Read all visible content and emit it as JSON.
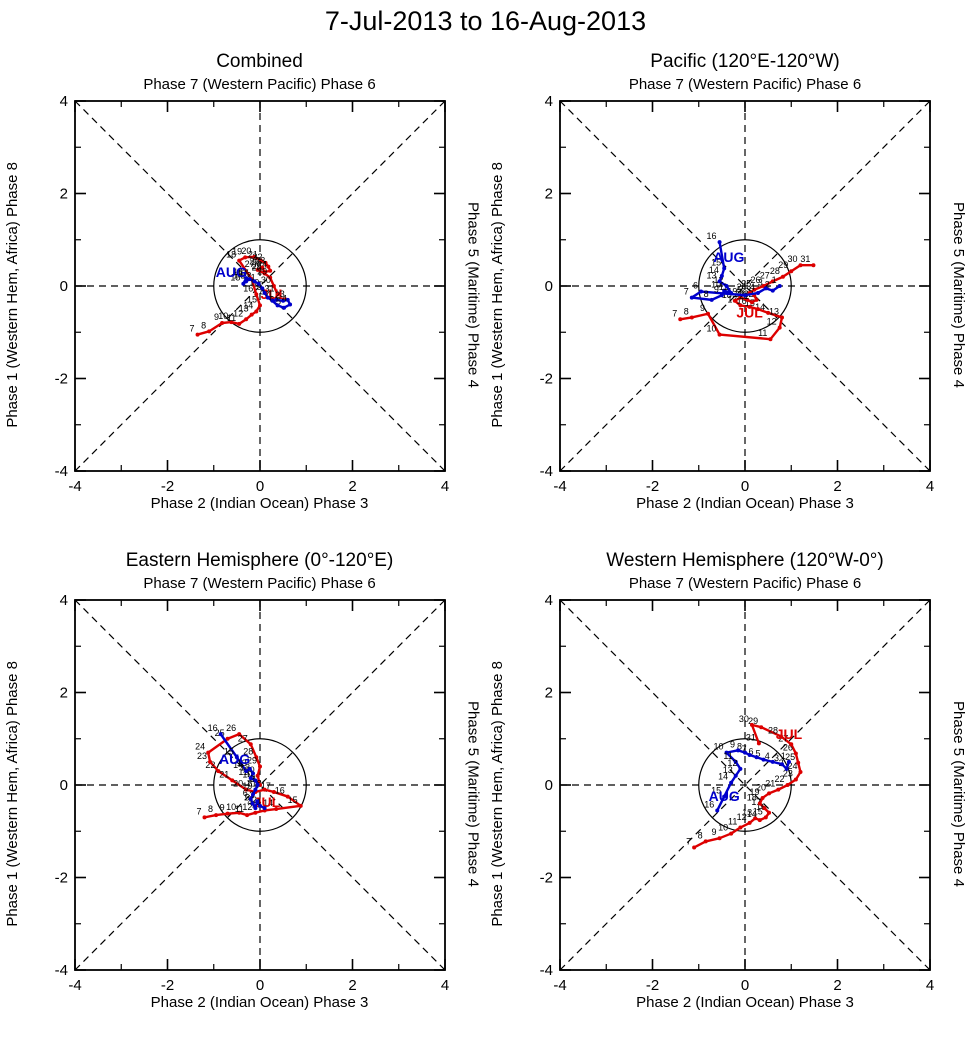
{
  "title": "7-Jul-2013 to 16-Aug-2013",
  "colors": {
    "jul": "#dd0000",
    "aug": "#0000cc",
    "axis": "#000000"
  },
  "axes": {
    "major_ticks": [
      -4,
      -2,
      0,
      2,
      4
    ],
    "minor_ticks": [
      -3,
      -1,
      1,
      3
    ],
    "xlim": [
      -4,
      4
    ],
    "ylim": [
      -4,
      4
    ],
    "unit_circle_radius": 1
  },
  "chart_data": [
    {
      "type": "line",
      "title": "Combined",
      "top_label": "Phase 7 (Western Pacific) Phase 6",
      "xlabel": "Phase 2 (Indian Ocean) Phase 3",
      "ylabel": "Phase 1 (Western Hem, Africa) Phase 8",
      "right_label": "Phase 5 (Maritime) Phase 4",
      "xlim": [
        -4,
        4
      ],
      "ylim": [
        -4,
        4
      ],
      "series": [
        {
          "name": "JUL",
          "color": "#dd0000",
          "label_pos": [
            0.3,
            -0.28
          ],
          "points": [
            [
              7,
              -1.35,
              -1.05
            ],
            [
              8,
              -1.1,
              -0.98
            ],
            [
              9,
              -0.82,
              -0.8
            ],
            [
              10,
              -0.62,
              -0.78
            ],
            [
              11,
              -0.45,
              -0.82
            ],
            [
              12,
              -0.3,
              -0.72
            ],
            [
              13,
              -0.18,
              -0.62
            ],
            [
              14,
              -0.08,
              -0.55
            ],
            [
              15,
              0.0,
              -0.42
            ],
            [
              16,
              -0.08,
              -0.18
            ],
            [
              17,
              -0.18,
              0.15
            ],
            [
              18,
              -0.45,
              0.55
            ],
            [
              19,
              -0.32,
              0.62
            ],
            [
              20,
              -0.12,
              0.63
            ],
            [
              21,
              0.02,
              0.55
            ],
            [
              22,
              0.12,
              0.5
            ],
            [
              23,
              0.18,
              0.42
            ],
            [
              24,
              0.22,
              0.33
            ],
            [
              25,
              0.1,
              0.3
            ],
            [
              26,
              0.05,
              0.4
            ],
            [
              27,
              -0.05,
              0.35
            ],
            [
              28,
              0.1,
              0.27
            ],
            [
              29,
              0.22,
              0.18
            ],
            [
              30,
              0.3,
              0.0
            ],
            [
              31,
              0.38,
              -0.18
            ]
          ]
        },
        {
          "name": "AUG",
          "color": "#0000cc",
          "label_pos": [
            -0.62,
            0.2
          ],
          "points": [
            [
              1,
              0.35,
              -0.3
            ],
            [
              2,
              0.5,
              -0.32
            ],
            [
              3,
              0.6,
              -0.3
            ],
            [
              4,
              0.65,
              -0.4
            ],
            [
              5,
              0.52,
              -0.47
            ],
            [
              6,
              0.38,
              -0.42
            ],
            [
              7,
              0.27,
              -0.32
            ],
            [
              8,
              0.17,
              -0.25
            ],
            [
              9,
              0.1,
              -0.15
            ],
            [
              10,
              0.05,
              -0.05
            ],
            [
              11,
              -0.03,
              0.05
            ],
            [
              12,
              -0.12,
              0.1
            ],
            [
              13,
              -0.22,
              0.15
            ],
            [
              14,
              -0.3,
              0.1
            ],
            [
              15,
              -0.36,
              0.05
            ],
            [
              16,
              -0.3,
              0.17
            ]
          ]
        }
      ]
    },
    {
      "type": "line",
      "title": "Pacific (120°E-120°W)",
      "top_label": "Phase 7 (Western Pacific) Phase 6",
      "xlabel": "Phase 2 (Indian Ocean) Phase 3",
      "ylabel": "Phase 1 (Western Hem, Africa) Phase 8",
      "right_label": "Phase 5 (Maritime) Phase 4",
      "xlim": [
        -4,
        4
      ],
      "ylim": [
        -4,
        4
      ],
      "series": [
        {
          "name": "JUL",
          "color": "#dd0000",
          "label_pos": [
            0.1,
            -0.68
          ],
          "points": [
            [
              7,
              -1.4,
              -0.72
            ],
            [
              8,
              -1.15,
              -0.68
            ],
            [
              9,
              -0.8,
              -0.6
            ],
            [
              10,
              -0.55,
              -1.05
            ],
            [
              11,
              0.55,
              -1.15
            ],
            [
              12,
              0.75,
              -0.9
            ],
            [
              13,
              0.8,
              -0.68
            ],
            [
              14,
              0.5,
              -0.58
            ],
            [
              15,
              0.28,
              -0.5
            ],
            [
              16,
              0.1,
              -0.45
            ],
            [
              17,
              -0.1,
              -0.42
            ],
            [
              18,
              -0.22,
              -0.32
            ],
            [
              19,
              -0.1,
              -0.25
            ],
            [
              20,
              0.05,
              -0.3
            ],
            [
              21,
              0.15,
              -0.35
            ],
            [
              22,
              0.25,
              -0.3
            ],
            [
              23,
              0.2,
              -0.2
            ],
            [
              24,
              0.1,
              -0.15
            ],
            [
              25,
              0.2,
              -0.08
            ],
            [
              26,
              0.4,
              0.0
            ],
            [
              27,
              0.6,
              0.1
            ],
            [
              28,
              0.82,
              0.2
            ],
            [
              29,
              1.0,
              0.32
            ],
            [
              30,
              1.2,
              0.45
            ],
            [
              31,
              1.48,
              0.45
            ]
          ]
        },
        {
          "name": "AUG",
          "color": "#0000cc",
          "label_pos": [
            -0.35,
            0.52
          ],
          "points": [
            [
              1,
              0.75,
              0.0
            ],
            [
              2,
              0.6,
              -0.1
            ],
            [
              3,
              0.45,
              -0.05
            ],
            [
              4,
              0.28,
              -0.15
            ],
            [
              5,
              0.0,
              -0.2
            ],
            [
              6,
              -0.95,
              -0.12
            ],
            [
              7,
              -1.15,
              -0.25
            ],
            [
              8,
              -0.72,
              -0.3
            ],
            [
              9,
              -0.5,
              -0.2
            ],
            [
              10,
              -0.45,
              -0.1
            ],
            [
              11,
              -0.3,
              -0.15
            ],
            [
              12,
              -0.4,
              0.0
            ],
            [
              13,
              -0.55,
              0.1
            ],
            [
              14,
              -0.5,
              0.22
            ],
            [
              15,
              -0.45,
              0.38
            ],
            [
              16,
              -0.55,
              0.95
            ]
          ]
        }
      ]
    },
    {
      "type": "line",
      "title": "Eastern Hemisphere (0°-120°E)",
      "top_label": "Phase 7 (Western Pacific) Phase 6",
      "xlabel": "Phase 2 (Indian Ocean) Phase 3",
      "ylabel": "Phase 1 (Western Hem, Africa) Phase 8",
      "right_label": "Phase 5 (Maritime) Phase 4",
      "xlim": [
        -4,
        4
      ],
      "ylim": [
        -4,
        4
      ],
      "series": [
        {
          "name": "JUL",
          "color": "#dd0000",
          "label_pos": [
            0.15,
            -0.48
          ],
          "points": [
            [
              7,
              -1.2,
              -0.7
            ],
            [
              8,
              -0.95,
              -0.65
            ],
            [
              9,
              -0.7,
              -0.62
            ],
            [
              10,
              -0.45,
              -0.6
            ],
            [
              11,
              -0.28,
              -0.65
            ],
            [
              12,
              -0.1,
              -0.6
            ],
            [
              13,
              0.1,
              -0.55
            ],
            [
              14,
              0.35,
              -0.52
            ],
            [
              15,
              0.88,
              -0.45
            ],
            [
              16,
              0.6,
              -0.25
            ],
            [
              17,
              0.3,
              -0.15
            ],
            [
              18,
              0.1,
              -0.1
            ],
            [
              19,
              -0.1,
              -0.15
            ],
            [
              20,
              -0.3,
              -0.1
            ],
            [
              21,
              -0.6,
              0.1
            ],
            [
              22,
              -0.9,
              0.3
            ],
            [
              23,
              -1.08,
              0.5
            ],
            [
              24,
              -1.12,
              0.7
            ],
            [
              25,
              -0.7,
              1.0
            ],
            [
              26,
              -0.45,
              1.1
            ],
            [
              27,
              -0.2,
              0.88
            ],
            [
              28,
              -0.08,
              0.6
            ],
            [
              29,
              0.0,
              0.4
            ],
            [
              30,
              -0.05,
              0.2
            ],
            [
              31,
              0.0,
              0.0
            ]
          ]
        },
        {
          "name": "AUG",
          "color": "#0000cc",
          "label_pos": [
            -0.55,
            0.45
          ],
          "points": [
            [
              1,
              0.1,
              -0.5
            ],
            [
              2,
              0.0,
              -0.45
            ],
            [
              3,
              -0.06,
              -0.35
            ],
            [
              4,
              -0.1,
              -0.5
            ],
            [
              5,
              -0.16,
              -0.4
            ],
            [
              6,
              -0.2,
              -0.3
            ],
            [
              7,
              -0.15,
              -0.2
            ],
            [
              8,
              -0.1,
              -0.1
            ],
            [
              9,
              -0.05,
              0.0
            ],
            [
              10,
              -0.1,
              0.1
            ],
            [
              11,
              -0.2,
              0.15
            ],
            [
              12,
              -0.15,
              0.25
            ],
            [
              13,
              -0.22,
              0.35
            ],
            [
              14,
              -0.3,
              0.3
            ],
            [
              15,
              -0.5,
              0.6
            ],
            [
              16,
              -0.85,
              1.1
            ]
          ]
        }
      ]
    },
    {
      "type": "line",
      "title": "Western Hemisphere (120°W-0°)",
      "top_label": "Phase 7 (Western Pacific) Phase 6",
      "xlabel": "Phase 2 (Indian Ocean) Phase 3",
      "ylabel": "Phase 1 (Western Hem, Africa) Phase 8",
      "right_label": "Phase 5 (Maritime) Phase 4",
      "xlim": [
        -4,
        4
      ],
      "ylim": [
        -4,
        4
      ],
      "series": [
        {
          "name": "JUL",
          "color": "#dd0000",
          "label_pos": [
            0.95,
            1.0
          ],
          "points": [
            [
              7,
              -1.1,
              -1.35
            ],
            [
              8,
              -0.85,
              -1.22
            ],
            [
              9,
              -0.55,
              -1.15
            ],
            [
              10,
              -0.3,
              -1.05
            ],
            [
              11,
              -0.1,
              -0.92
            ],
            [
              12,
              0.1,
              -0.82
            ],
            [
              13,
              0.22,
              -0.72
            ],
            [
              14,
              0.32,
              -0.76
            ],
            [
              15,
              0.45,
              -0.7
            ],
            [
              16,
              0.52,
              -0.6
            ],
            [
              17,
              0.42,
              -0.5
            ],
            [
              18,
              0.32,
              -0.4
            ],
            [
              19,
              0.38,
              -0.28
            ],
            [
              20,
              0.52,
              -0.18
            ],
            [
              21,
              0.72,
              -0.1
            ],
            [
              22,
              0.92,
              0.0
            ],
            [
              23,
              1.1,
              0.12
            ],
            [
              24,
              1.2,
              0.28
            ],
            [
              25,
              1.15,
              0.48
            ],
            [
              26,
              1.1,
              0.68
            ],
            [
              27,
              1.0,
              0.88
            ],
            [
              28,
              0.78,
              1.05
            ],
            [
              29,
              0.35,
              1.25
            ],
            [
              30,
              0.15,
              1.3
            ],
            [
              31,
              0.3,
              0.9
            ]
          ]
        },
        {
          "name": "AUG",
          "color": "#0000cc",
          "label_pos": [
            -0.45,
            -0.35
          ],
          "points": [
            [
              1,
              0.95,
              0.5
            ],
            [
              2,
              0.9,
              0.35
            ],
            [
              3,
              0.8,
              0.45
            ],
            [
              4,
              0.6,
              0.5
            ],
            [
              5,
              0.4,
              0.55
            ],
            [
              6,
              0.25,
              0.6
            ],
            [
              7,
              0.1,
              0.65
            ],
            [
              8,
              0.0,
              0.7
            ],
            [
              9,
              -0.15,
              0.75
            ],
            [
              10,
              -0.4,
              0.7
            ],
            [
              11,
              -0.2,
              0.5
            ],
            [
              12,
              -0.1,
              0.35
            ],
            [
              13,
              -0.2,
              0.2
            ],
            [
              14,
              -0.3,
              0.05
            ],
            [
              15,
              -0.45,
              -0.25
            ],
            [
              16,
              -0.6,
              -0.55
            ]
          ]
        }
      ]
    }
  ]
}
